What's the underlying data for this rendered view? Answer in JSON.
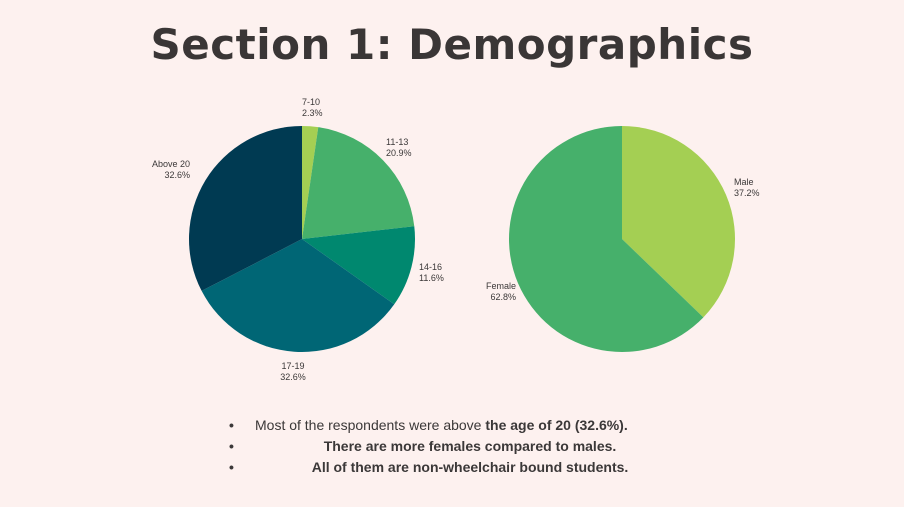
{
  "title": "Section 1: Demographics",
  "chart_data": [
    {
      "type": "pie",
      "categories": [
        "7-10",
        "11-13",
        "14-16",
        "17-19",
        "Above 20"
      ],
      "values": [
        2.3,
        20.9,
        11.6,
        32.6,
        32.6
      ],
      "value_labels": [
        "2.3%",
        "20.9%",
        "11.6%",
        "32.6%",
        "32.6%"
      ],
      "colors": [
        "#a4cf53",
        "#46b06b",
        "#00886f",
        "#006675",
        "#003a52"
      ],
      "start": "top, clockwise"
    },
    {
      "type": "pie",
      "categories": [
        "Male",
        "Female"
      ],
      "values": [
        37.2,
        62.8
      ],
      "value_labels": [
        "37.2%",
        "62.8%"
      ],
      "colors": [
        "#a4cf53",
        "#46b06b"
      ],
      "start": "top, clockwise"
    }
  ],
  "bullets": [
    {
      "text": "Most of the respondents were above ",
      "bold": "the age of 20 (32.6%)",
      "tail": "."
    },
    {
      "text": "There are more females compared to males."
    },
    {
      "text": "All of them are non-wheelchair bound students."
    }
  ],
  "bullet_char": "•"
}
